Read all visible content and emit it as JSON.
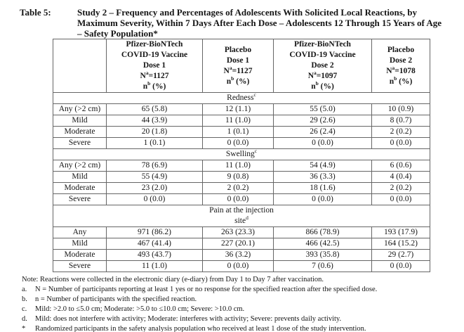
{
  "title": {
    "label": "Table 5:",
    "lines": [
      "Study 2 – Frequency and Percentages of Adolescents With Solicited Local Reactions, by",
      "Maximum Severity, Within 7 Days After Each Dose – Adolescents 12 Through 15 Years of Age",
      "– Safety Population*"
    ]
  },
  "table": {
    "columns": [
      {
        "name": "reaction-label-column",
        "header_lines": []
      },
      {
        "name": "bnt-dose1-column",
        "header_lines": [
          "Pfizer-BioNTech",
          "COVID-19 Vaccine",
          "Dose 1",
          "N^{a}=1127",
          "n^{b} (%)"
        ]
      },
      {
        "name": "placebo-dose1-column",
        "header_lines": [
          "Placebo",
          "Dose 1",
          "N^{a}=1127",
          "n^{b} (%)"
        ]
      },
      {
        "name": "bnt-dose2-column",
        "header_lines": [
          "Pfizer-BioNTech",
          "COVID-19 Vaccine",
          "Dose 2",
          "N^{a}=1097",
          "n^{b} (%)"
        ]
      },
      {
        "name": "placebo-dose2-column",
        "header_lines": [
          "Placebo",
          "Dose 2",
          "N^{a}=1078",
          "n^{b} (%)"
        ]
      }
    ],
    "sections": [
      {
        "label": "Redness^{c}",
        "rows": [
          {
            "label": "Any (>2 cm)",
            "values": [
              "65 (5.8)",
              "12 (1.1)",
              "55 (5.0)",
              "10 (0.9)"
            ]
          },
          {
            "label": "Mild",
            "values": [
              "44 (3.9)",
              "11 (1.0)",
              "29 (2.6)",
              "8 (0.7)"
            ]
          },
          {
            "label": "Moderate",
            "values": [
              "20 (1.8)",
              "1 (0.1)",
              "26 (2.4)",
              "2 (0.2)"
            ]
          },
          {
            "label": "Severe",
            "values": [
              "1 (0.1)",
              "0 (0.0)",
              "0 (0.0)",
              "0 (0.0)"
            ]
          }
        ]
      },
      {
        "label": "Swelling^{c}",
        "rows": [
          {
            "label": "Any (>2 cm)",
            "values": [
              "78 (6.9)",
              "11 (1.0)",
              "54 (4.9)",
              "6 (0.6)"
            ]
          },
          {
            "label": "Mild",
            "values": [
              "55 (4.9)",
              "9 (0.8)",
              "36 (3.3)",
              "4 (0.4)"
            ]
          },
          {
            "label": "Moderate",
            "values": [
              "23 (2.0)",
              "2 (0.2)",
              "18 (1.6)",
              "2 (0.2)"
            ]
          },
          {
            "label": "Severe",
            "values": [
              "0 (0.0)",
              "0 (0.0)",
              "0 (0.0)",
              "0 (0.0)"
            ]
          }
        ]
      },
      {
        "label": "Pain at the injection\nsite^{d}",
        "rows": [
          {
            "label": "Any",
            "values": [
              "971 (86.2)",
              "263 (23.3)",
              "866 (78.9)",
              "193 (17.9)"
            ]
          },
          {
            "label": "Mild",
            "values": [
              "467 (41.4)",
              "227 (20.1)",
              "466 (42.5)",
              "164 (15.2)"
            ]
          },
          {
            "label": "Moderate",
            "values": [
              "493 (43.7)",
              "36 (3.2)",
              "393 (35.8)",
              "29 (2.7)"
            ]
          },
          {
            "label": "Severe",
            "values": [
              "11 (1.0)",
              "0 (0.0)",
              "7 (0.6)",
              "0 (0.0)"
            ]
          }
        ]
      }
    ]
  },
  "footnotes": [
    {
      "marker": "",
      "text": "Note: Reactions were collected in the electronic diary (e-diary) from Day 1 to Day 7 after vaccination."
    },
    {
      "marker": "a.",
      "text": "N = Number of participants reporting at least 1 yes or no response for the specified reaction after the specified dose."
    },
    {
      "marker": "b.",
      "text": "n = Number of participants with the specified reaction."
    },
    {
      "marker": "c.",
      "text": "Mild: >2.0 to ≤5.0 cm; Moderate: >5.0 to ≤10.0 cm; Severe: >10.0 cm."
    },
    {
      "marker": "d.",
      "text": "Mild: does not interfere with activity; Moderate: interferes with activity; Severe: prevents daily activity."
    },
    {
      "marker": "*",
      "text": "Randomized participants in the safety analysis population who received at least 1 dose of the study intervention."
    }
  ]
}
